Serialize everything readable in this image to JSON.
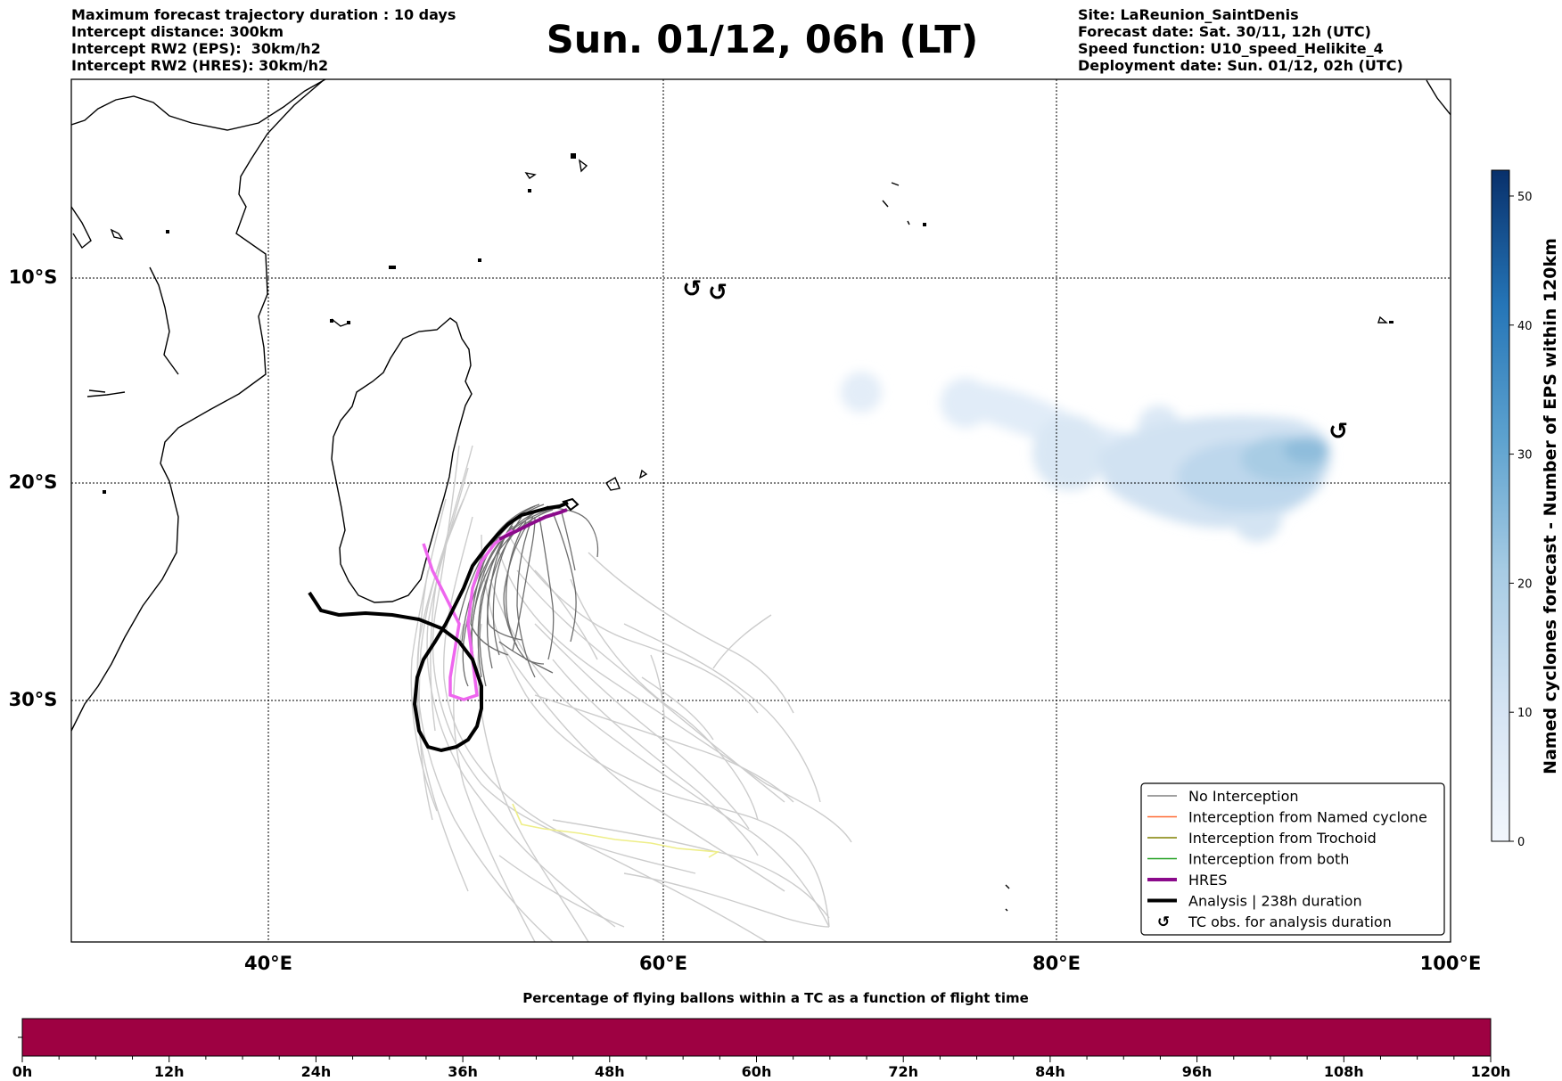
{
  "header": {
    "left_lines": [
      "Maximum forecast trajectory duration : 10 days",
      "Intercept distance: 300km",
      "Intercept RW2 (EPS):  30km/h2",
      "Intercept RW2 (HRES): 30km/h2"
    ],
    "title": "Sun. 01/12, 06h (LT)",
    "right_lines": [
      "Site: LaReunion_SaintDenis",
      "Forecast date: Sat. 30/11, 12h (UTC)",
      "Speed function: U10_speed_Helikite_4",
      "Deployment date: Sun. 01/12, 02h (UTC)"
    ]
  },
  "map": {
    "lon_range": [
      30,
      100
    ],
    "lat_range": [
      0,
      -42
    ],
    "lon_ticks": [
      {
        "value": 40,
        "label": "40°E"
      },
      {
        "value": 60,
        "label": "60°E"
      },
      {
        "value": 80,
        "label": "80°E"
      },
      {
        "value": 100,
        "label": "100°E"
      }
    ],
    "lat_ticks": [
      {
        "value": -10,
        "label": "10°S"
      },
      {
        "value": -20,
        "label": "20°S"
      },
      {
        "value": -30,
        "label": "30°S"
      }
    ],
    "gridlines": "dotted",
    "colors": {
      "no_interception": "#808080",
      "named_cyclone": "#ff6a33",
      "trochoid": "#808000",
      "both": "#22a022",
      "hres": "#8b0a8b",
      "analysis": "#000000",
      "faded_tracks": "#cccccc",
      "hres_pink": "#ee66ee",
      "yellow_track": "#eeee88"
    }
  },
  "legend": {
    "position": "lower-right",
    "items": [
      {
        "label": "No Interception",
        "kind": "line",
        "color": "#808080"
      },
      {
        "label": "Interception from Named cyclone",
        "kind": "line",
        "color": "#ff6a33"
      },
      {
        "label": "Interception from Trochoid",
        "kind": "line",
        "color": "#808000"
      },
      {
        "label": "Interception from both",
        "kind": "line",
        "color": "#22a022"
      },
      {
        "label": "HRES",
        "kind": "thick",
        "color": "#8b0a8b"
      },
      {
        "label": "Analysis | 238h duration",
        "kind": "thick",
        "color": "#000000"
      },
      {
        "label": "TC obs. for analysis duration",
        "kind": "symbol",
        "symbol": "↺"
      }
    ]
  },
  "tc_obs": [
    {
      "lon": 61.5,
      "lat": -11.2
    },
    {
      "lon": 62.8,
      "lat": -11.4
    },
    {
      "lon": 94.3,
      "lat": -18.6
    }
  ],
  "tc_obs_symbol": "↺",
  "colorbar": {
    "label": "Named cyclones forecast - Number of EPS within 120km",
    "min": 0,
    "max": 52,
    "ticks": [
      0,
      10,
      20,
      30,
      40,
      50
    ],
    "color_low": "#f2f7fd",
    "color_high": "#08306b"
  },
  "timebar": {
    "title": "Percentage of flying ballons within a TC as a function of flight time",
    "color": "#9e0142",
    "range_hours": [
      0,
      120
    ],
    "tick_labels": [
      "0h",
      "12h",
      "24h",
      "36h",
      "48h",
      "60h",
      "72h",
      "84h",
      "96h",
      "108h",
      "120h"
    ]
  }
}
